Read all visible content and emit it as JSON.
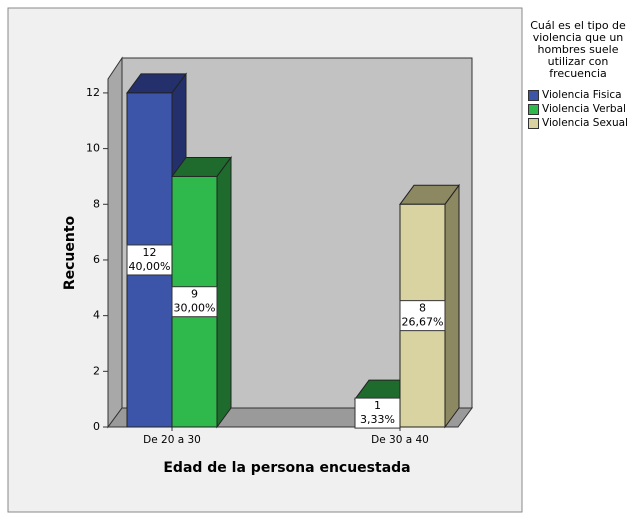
{
  "chart_data": {
    "type": "bar3d",
    "x_label": "Edad de  la persona encuestada",
    "y_label": "Recuento",
    "categories": [
      "De 20 a 30",
      "De 30 a 40"
    ],
    "legend_title": "Cuál es el tipo de violencia que un hombres suele utilizar con frecuencia",
    "series": [
      {
        "name": "Violencia Fisica",
        "color": "#3c55a8",
        "dark": "#24306b",
        "values": [
          12,
          null
        ],
        "value_labels": [
          "12",
          null
        ],
        "percent_labels": [
          "40,00%",
          null
        ]
      },
      {
        "name": "Violencia Verbal",
        "color": "#2fb84b",
        "dark": "#1f6b2d",
        "values": [
          9,
          1
        ],
        "value_labels": [
          "9",
          "1"
        ],
        "percent_labels": [
          "30,00%",
          "3,33%"
        ]
      },
      {
        "name": "Violencia Sexual",
        "color": "#d8d3a1",
        "dark": "#8c8862",
        "values": [
          null,
          8
        ],
        "value_labels": [
          null,
          "8"
        ],
        "percent_labels": [
          null,
          "26,67%"
        ]
      }
    ],
    "ylim": [
      0,
      12.5
    ],
    "yticks": [
      0,
      2,
      4,
      6,
      8,
      10,
      12
    ],
    "grid": false
  }
}
